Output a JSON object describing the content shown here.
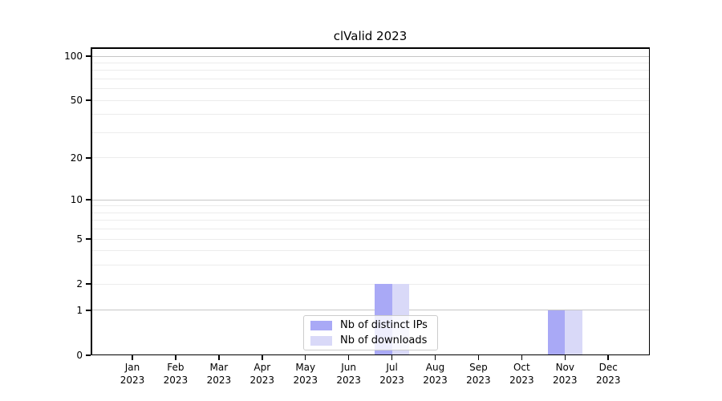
{
  "title": "clValid 2023",
  "colors": {
    "series_ips": "#a9a9f6",
    "series_downloads": "#d9d9f8",
    "grid_major": "#c6c6c6",
    "grid_minor": "#ececec",
    "spine": "#000000",
    "legend_border": "#cccccc",
    "background": "#ffffff"
  },
  "legend": {
    "items": [
      {
        "label": "Nb of distinct IPs"
      },
      {
        "label": "Nb of downloads"
      }
    ]
  },
  "chart_data": {
    "type": "bar",
    "title": "clValid 2023",
    "x_categories_line1": [
      "Jan",
      "Feb",
      "Mar",
      "Apr",
      "May",
      "Jun",
      "Jul",
      "Aug",
      "Sep",
      "Oct",
      "Nov",
      "Dec"
    ],
    "x_categories_line2": [
      "2023",
      "2023",
      "2023",
      "2023",
      "2023",
      "2023",
      "2023",
      "2023",
      "2023",
      "2023",
      "2023",
      "2023"
    ],
    "series": [
      {
        "name": "Nb of distinct IPs",
        "color": "#a9a9f6",
        "values": [
          0,
          0,
          0,
          0,
          0,
          0,
          2,
          0,
          0,
          0,
          1,
          0
        ]
      },
      {
        "name": "Nb of downloads",
        "color": "#d9d9f8",
        "values": [
          0,
          0,
          0,
          0,
          0,
          0,
          2,
          0,
          0,
          0,
          1,
          0
        ]
      }
    ],
    "yscale": "log10(1+x)",
    "y_tick_values": [
      0,
      1,
      2,
      5,
      10,
      20,
      50,
      100
    ],
    "y_gridlines_major": [
      1,
      10,
      100
    ],
    "y_gridlines_minor": [
      2,
      3,
      4,
      5,
      6,
      7,
      8,
      9,
      20,
      30,
      40,
      50,
      60,
      70,
      80,
      90
    ],
    "ylim": [
      0,
      115
    ],
    "grid": true,
    "legend_position": "lower center"
  }
}
